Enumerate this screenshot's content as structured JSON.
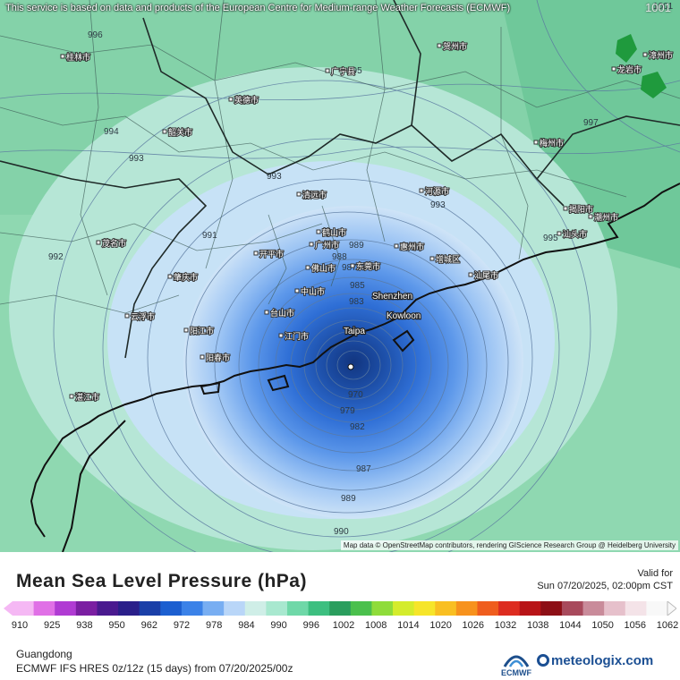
{
  "map": {
    "notice": "This service is based on data and products of the European Centre for Medium-range Weather Forecasts (ECMWF)",
    "corner_value": "1001",
    "attribution": "Map data © OpenStreetMap contributors, rendering GIScience Research Group @ Heidelberg University",
    "isobar_labels": [
      "996",
      "995",
      "994",
      "993",
      "993",
      "991",
      "992",
      "997",
      "993",
      "995",
      "989",
      "988",
      "987",
      "985",
      "983",
      "970",
      "979",
      "982",
      "987",
      "989",
      "990",
      "1001"
    ],
    "major_cities": [
      "Shenzhen",
      "Kowloon",
      "Taipa"
    ],
    "minor_cities": [
      "桂林市",
      "贺州市",
      "广宁县",
      "英德市",
      "韶关市",
      "清远市",
      "佛山市",
      "广州市",
      "东莞市",
      "惠州市",
      "中山市",
      "江门市",
      "阳江市",
      "茂名市",
      "湛江市",
      "梅州市",
      "潮州市",
      "汕头市",
      "揭阳市",
      "汕尾市",
      "河源市",
      "云浮市",
      "肇庆市",
      "阳春市",
      "台山市",
      "开平市",
      "鹤山市",
      "增城区",
      "龙岩市",
      "漳州市"
    ]
  },
  "legend": {
    "title": "Mean Sea Level Pressure (hPa)",
    "valid_label": "Valid for",
    "valid_time": "Sun 07/20/2025, 02:00pm CST",
    "ticks": [
      "910",
      "925",
      "938",
      "950",
      "962",
      "972",
      "978",
      "984",
      "990",
      "996",
      "1002",
      "1008",
      "1014",
      "1020",
      "1026",
      "1032",
      "1038",
      "1044",
      "1050",
      "1056",
      "1062"
    ],
    "colors": [
      "#f5b8f4",
      "#e070e6",
      "#b03bd3",
      "#7b1fa2",
      "#4a1a8f",
      "#2a1f8a",
      "#1a3fa8",
      "#1c5fd0",
      "#3b82e8",
      "#78aef2",
      "#b9d6f8",
      "#cfeee7",
      "#a8e8cf",
      "#6fd8a8",
      "#3dbf80",
      "#2a9e5e",
      "#4bc04d",
      "#8fdc3a",
      "#d4ec2c",
      "#f6e52a",
      "#f9bf22",
      "#f7921d",
      "#ef5d1e",
      "#dd2c20",
      "#b81417",
      "#8d0f16",
      "#a84a5c",
      "#c98b9a",
      "#e6c0cb",
      "#f4e3e8",
      "#f8f8f8"
    ],
    "region": "Guangdong",
    "model": "ECMWF IFS HRES 0z/12z (15 days) from 07/20/2025/00z",
    "ecmwf_logo_text": "ECMWF",
    "brand": "meteologix.com"
  }
}
